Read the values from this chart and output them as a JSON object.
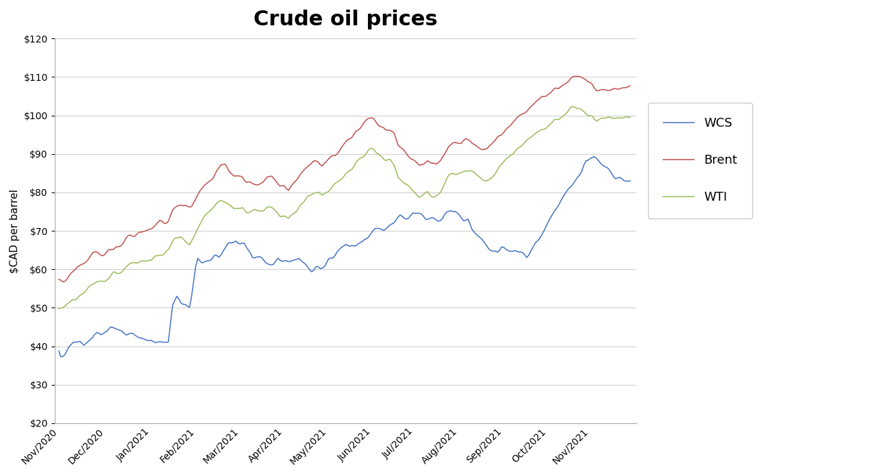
{
  "title": "Crude oil prices",
  "ylabel": "$CAD per barrel",
  "ylim": [
    20,
    120
  ],
  "yticks": [
    20,
    30,
    40,
    50,
    60,
    70,
    80,
    90,
    100,
    110,
    120
  ],
  "line_colors": {
    "WCS": "#4472C4",
    "Brent": "#C0504D",
    "WTI": "#9BBB59"
  },
  "background_color": "#FFFFFF",
  "title_fontsize": 22,
  "axis_label_fontsize": 11,
  "tick_fontsize": 10,
  "x_tick_labels": [
    "Nov/2020",
    "Dec/2020",
    "Jan/2021",
    "Feb/2021",
    "Mar/2021",
    "Apr/2021",
    "May/2021",
    "Jun/2021",
    "Jul/2021",
    "Aug/2021",
    "Sep/2021",
    "Oct/2021",
    "Nov/2021"
  ],
  "wcs_keypoints": [
    [
      0,
      38
    ],
    [
      1,
      37
    ],
    [
      3,
      38
    ],
    [
      5,
      40
    ],
    [
      7,
      41
    ],
    [
      10,
      41
    ],
    [
      12,
      40
    ],
    [
      14,
      41
    ],
    [
      17,
      43
    ],
    [
      19,
      44
    ],
    [
      21,
      44
    ],
    [
      23,
      43
    ],
    [
      25,
      44
    ],
    [
      28,
      44
    ],
    [
      30,
      44
    ],
    [
      32,
      43
    ],
    [
      35,
      43
    ],
    [
      38,
      42
    ],
    [
      40,
      42
    ],
    [
      42,
      42
    ],
    [
      44,
      42
    ],
    [
      46,
      41
    ],
    [
      48,
      41
    ],
    [
      50,
      41
    ],
    [
      52,
      41
    ],
    [
      54,
      50
    ],
    [
      56,
      52
    ],
    [
      58,
      51
    ],
    [
      60,
      51
    ],
    [
      62,
      50
    ],
    [
      63,
      53
    ],
    [
      65,
      61
    ],
    [
      66,
      63
    ],
    [
      68,
      62
    ],
    [
      70,
      62
    ],
    [
      72,
      62
    ],
    [
      74,
      63
    ],
    [
      76,
      63
    ],
    [
      78,
      65
    ],
    [
      80,
      66
    ],
    [
      82,
      67
    ],
    [
      84,
      68
    ],
    [
      86,
      67
    ],
    [
      88,
      67
    ],
    [
      90,
      65
    ],
    [
      92,
      63
    ],
    [
      94,
      63
    ],
    [
      96,
      63
    ],
    [
      98,
      62
    ],
    [
      100,
      62
    ],
    [
      102,
      62
    ],
    [
      104,
      63
    ],
    [
      106,
      62
    ],
    [
      108,
      62
    ],
    [
      110,
      62
    ],
    [
      112,
      62
    ],
    [
      114,
      63
    ],
    [
      116,
      62
    ],
    [
      118,
      61
    ],
    [
      120,
      60
    ],
    [
      122,
      60
    ],
    [
      124,
      59
    ],
    [
      126,
      60
    ],
    [
      128,
      62
    ],
    [
      130,
      63
    ],
    [
      132,
      65
    ],
    [
      134,
      66
    ],
    [
      136,
      66
    ],
    [
      138,
      65
    ],
    [
      140,
      66
    ],
    [
      142,
      67
    ],
    [
      144,
      67
    ],
    [
      146,
      68
    ],
    [
      148,
      69
    ],
    [
      150,
      70
    ],
    [
      152,
      70
    ],
    [
      154,
      70
    ],
    [
      156,
      71
    ],
    [
      158,
      72
    ],
    [
      160,
      73
    ],
    [
      162,
      74
    ],
    [
      164,
      74
    ],
    [
      166,
      74
    ],
    [
      168,
      75
    ],
    [
      170,
      75
    ],
    [
      172,
      74
    ],
    [
      174,
      73
    ],
    [
      176,
      73
    ],
    [
      178,
      73
    ],
    [
      180,
      73
    ],
    [
      182,
      73
    ],
    [
      184,
      74
    ],
    [
      186,
      75
    ],
    [
      188,
      75
    ],
    [
      190,
      74
    ],
    [
      192,
      73
    ],
    [
      194,
      73
    ],
    [
      196,
      70
    ],
    [
      198,
      69
    ],
    [
      200,
      68
    ],
    [
      202,
      67
    ],
    [
      204,
      66
    ],
    [
      206,
      65
    ],
    [
      208,
      65
    ],
    [
      210,
      66
    ],
    [
      212,
      65
    ],
    [
      214,
      65
    ],
    [
      216,
      65
    ],
    [
      218,
      64
    ],
    [
      220,
      64
    ],
    [
      222,
      63
    ],
    [
      224,
      65
    ],
    [
      226,
      67
    ],
    [
      228,
      68
    ],
    [
      230,
      70
    ],
    [
      232,
      72
    ],
    [
      234,
      74
    ],
    [
      236,
      76
    ],
    [
      238,
      78
    ],
    [
      240,
      80
    ],
    [
      242,
      82
    ],
    [
      244,
      83
    ],
    [
      246,
      84
    ],
    [
      248,
      85
    ],
    [
      250,
      88
    ],
    [
      252,
      89
    ],
    [
      254,
      89
    ],
    [
      256,
      88
    ],
    [
      258,
      87
    ],
    [
      260,
      86
    ],
    [
      262,
      85
    ],
    [
      264,
      84
    ],
    [
      266,
      84
    ],
    [
      268,
      83
    ],
    [
      270,
      83
    ]
  ],
  "brent_keypoints": [
    [
      0,
      57
    ],
    [
      2,
      57
    ],
    [
      4,
      58
    ],
    [
      6,
      59
    ],
    [
      8,
      60
    ],
    [
      10,
      61
    ],
    [
      12,
      62
    ],
    [
      14,
      63
    ],
    [
      16,
      64
    ],
    [
      18,
      64
    ],
    [
      20,
      64
    ],
    [
      22,
      64
    ],
    [
      24,
      65
    ],
    [
      26,
      65
    ],
    [
      28,
      66
    ],
    [
      30,
      67
    ],
    [
      32,
      68
    ],
    [
      34,
      69
    ],
    [
      36,
      69
    ],
    [
      38,
      70
    ],
    [
      40,
      70
    ],
    [
      42,
      70
    ],
    [
      44,
      70
    ],
    [
      46,
      71
    ],
    [
      48,
      72
    ],
    [
      50,
      72
    ],
    [
      52,
      73
    ],
    [
      54,
      75
    ],
    [
      56,
      76
    ],
    [
      58,
      77
    ],
    [
      60,
      77
    ],
    [
      62,
      76
    ],
    [
      63,
      76
    ],
    [
      65,
      78
    ],
    [
      67,
      80
    ],
    [
      69,
      82
    ],
    [
      71,
      83
    ],
    [
      73,
      84
    ],
    [
      75,
      86
    ],
    [
      77,
      87
    ],
    [
      79,
      87
    ],
    [
      81,
      85
    ],
    [
      83,
      84
    ],
    [
      85,
      84
    ],
    [
      87,
      84
    ],
    [
      89,
      83
    ],
    [
      91,
      83
    ],
    [
      93,
      83
    ],
    [
      95,
      83
    ],
    [
      97,
      83
    ],
    [
      99,
      84
    ],
    [
      101,
      84
    ],
    [
      103,
      83
    ],
    [
      105,
      82
    ],
    [
      107,
      82
    ],
    [
      109,
      81
    ],
    [
      111,
      82
    ],
    [
      113,
      83
    ],
    [
      115,
      85
    ],
    [
      117,
      86
    ],
    [
      119,
      87
    ],
    [
      121,
      88
    ],
    [
      123,
      88
    ],
    [
      125,
      87
    ],
    [
      127,
      88
    ],
    [
      129,
      89
    ],
    [
      131,
      90
    ],
    [
      133,
      91
    ],
    [
      135,
      92
    ],
    [
      137,
      93
    ],
    [
      139,
      94
    ],
    [
      141,
      96
    ],
    [
      143,
      97
    ],
    [
      145,
      98
    ],
    [
      147,
      99
    ],
    [
      149,
      99
    ],
    [
      151,
      98
    ],
    [
      153,
      97
    ],
    [
      155,
      96
    ],
    [
      157,
      96
    ],
    [
      159,
      95
    ],
    [
      161,
      92
    ],
    [
      163,
      91
    ],
    [
      165,
      90
    ],
    [
      167,
      89
    ],
    [
      169,
      88
    ],
    [
      171,
      87
    ],
    [
      173,
      87
    ],
    [
      175,
      88
    ],
    [
      177,
      87
    ],
    [
      179,
      87
    ],
    [
      181,
      88
    ],
    [
      183,
      90
    ],
    [
      185,
      92
    ],
    [
      187,
      93
    ],
    [
      189,
      93
    ],
    [
      191,
      93
    ],
    [
      193,
      94
    ],
    [
      195,
      94
    ],
    [
      197,
      93
    ],
    [
      199,
      92
    ],
    [
      201,
      91
    ],
    [
      203,
      91
    ],
    [
      205,
      92
    ],
    [
      207,
      93
    ],
    [
      209,
      95
    ],
    [
      211,
      96
    ],
    [
      213,
      97
    ],
    [
      215,
      98
    ],
    [
      217,
      99
    ],
    [
      219,
      100
    ],
    [
      221,
      101
    ],
    [
      223,
      102
    ],
    [
      225,
      103
    ],
    [
      227,
      104
    ],
    [
      229,
      105
    ],
    [
      231,
      105
    ],
    [
      233,
      106
    ],
    [
      235,
      107
    ],
    [
      237,
      107
    ],
    [
      239,
      108
    ],
    [
      241,
      109
    ],
    [
      243,
      110
    ],
    [
      245,
      110
    ],
    [
      247,
      110
    ],
    [
      249,
      109
    ],
    [
      251,
      108
    ],
    [
      253,
      108
    ],
    [
      255,
      107
    ],
    [
      257,
      107
    ],
    [
      259,
      107
    ],
    [
      261,
      107
    ],
    [
      263,
      107
    ],
    [
      265,
      107
    ],
    [
      267,
      107
    ],
    [
      269,
      107
    ],
    [
      271,
      107
    ]
  ],
  "wti_keypoints": [
    [
      0,
      50
    ],
    [
      2,
      50
    ],
    [
      4,
      51
    ],
    [
      6,
      52
    ],
    [
      8,
      52
    ],
    [
      10,
      53
    ],
    [
      12,
      54
    ],
    [
      14,
      55
    ],
    [
      16,
      56
    ],
    [
      18,
      57
    ],
    [
      20,
      57
    ],
    [
      22,
      57
    ],
    [
      24,
      58
    ],
    [
      26,
      59
    ],
    [
      28,
      59
    ],
    [
      30,
      60
    ],
    [
      32,
      61
    ],
    [
      34,
      62
    ],
    [
      36,
      62
    ],
    [
      38,
      62
    ],
    [
      40,
      62
    ],
    [
      42,
      62
    ],
    [
      44,
      62
    ],
    [
      46,
      63
    ],
    [
      48,
      64
    ],
    [
      50,
      64
    ],
    [
      52,
      65
    ],
    [
      54,
      67
    ],
    [
      56,
      68
    ],
    [
      58,
      69
    ],
    [
      60,
      68
    ],
    [
      62,
      67
    ],
    [
      63,
      68
    ],
    [
      65,
      70
    ],
    [
      67,
      72
    ],
    [
      69,
      74
    ],
    [
      71,
      75
    ],
    [
      73,
      76
    ],
    [
      75,
      77
    ],
    [
      77,
      78
    ],
    [
      79,
      78
    ],
    [
      81,
      77
    ],
    [
      83,
      76
    ],
    [
      85,
      76
    ],
    [
      87,
      76
    ],
    [
      89,
      75
    ],
    [
      91,
      75
    ],
    [
      93,
      75
    ],
    [
      95,
      75
    ],
    [
      97,
      75
    ],
    [
      99,
      76
    ],
    [
      101,
      76
    ],
    [
      103,
      75
    ],
    [
      105,
      74
    ],
    [
      107,
      74
    ],
    [
      109,
      73
    ],
    [
      111,
      74
    ],
    [
      113,
      75
    ],
    [
      115,
      77
    ],
    [
      117,
      78
    ],
    [
      119,
      79
    ],
    [
      121,
      80
    ],
    [
      123,
      80
    ],
    [
      125,
      79
    ],
    [
      127,
      80
    ],
    [
      129,
      81
    ],
    [
      131,
      82
    ],
    [
      133,
      83
    ],
    [
      135,
      84
    ],
    [
      137,
      85
    ],
    [
      139,
      86
    ],
    [
      141,
      88
    ],
    [
      143,
      89
    ],
    [
      145,
      90
    ],
    [
      147,
      91
    ],
    [
      149,
      91
    ],
    [
      151,
      90
    ],
    [
      153,
      89
    ],
    [
      155,
      88
    ],
    [
      157,
      88
    ],
    [
      159,
      87
    ],
    [
      161,
      84
    ],
    [
      163,
      83
    ],
    [
      165,
      82
    ],
    [
      167,
      81
    ],
    [
      169,
      80
    ],
    [
      171,
      79
    ],
    [
      173,
      79
    ],
    [
      175,
      80
    ],
    [
      177,
      79
    ],
    [
      179,
      79
    ],
    [
      181,
      80
    ],
    [
      183,
      82
    ],
    [
      185,
      84
    ],
    [
      187,
      85
    ],
    [
      189,
      85
    ],
    [
      191,
      85
    ],
    [
      193,
      86
    ],
    [
      195,
      86
    ],
    [
      197,
      85
    ],
    [
      199,
      84
    ],
    [
      201,
      83
    ],
    [
      203,
      83
    ],
    [
      205,
      84
    ],
    [
      207,
      85
    ],
    [
      209,
      87
    ],
    [
      211,
      88
    ],
    [
      213,
      89
    ],
    [
      215,
      90
    ],
    [
      217,
      91
    ],
    [
      219,
      92
    ],
    [
      221,
      93
    ],
    [
      223,
      94
    ],
    [
      225,
      95
    ],
    [
      227,
      96
    ],
    [
      229,
      97
    ],
    [
      231,
      97
    ],
    [
      233,
      98
    ],
    [
      235,
      99
    ],
    [
      237,
      99
    ],
    [
      239,
      100
    ],
    [
      241,
      101
    ],
    [
      243,
      102
    ],
    [
      245,
      102
    ],
    [
      247,
      102
    ],
    [
      249,
      101
    ],
    [
      251,
      100
    ],
    [
      253,
      100
    ],
    [
      255,
      99
    ],
    [
      257,
      99
    ],
    [
      259,
      99
    ],
    [
      261,
      99
    ],
    [
      263,
      99
    ],
    [
      265,
      99
    ],
    [
      267,
      99
    ],
    [
      269,
      99
    ],
    [
      271,
      99
    ]
  ]
}
